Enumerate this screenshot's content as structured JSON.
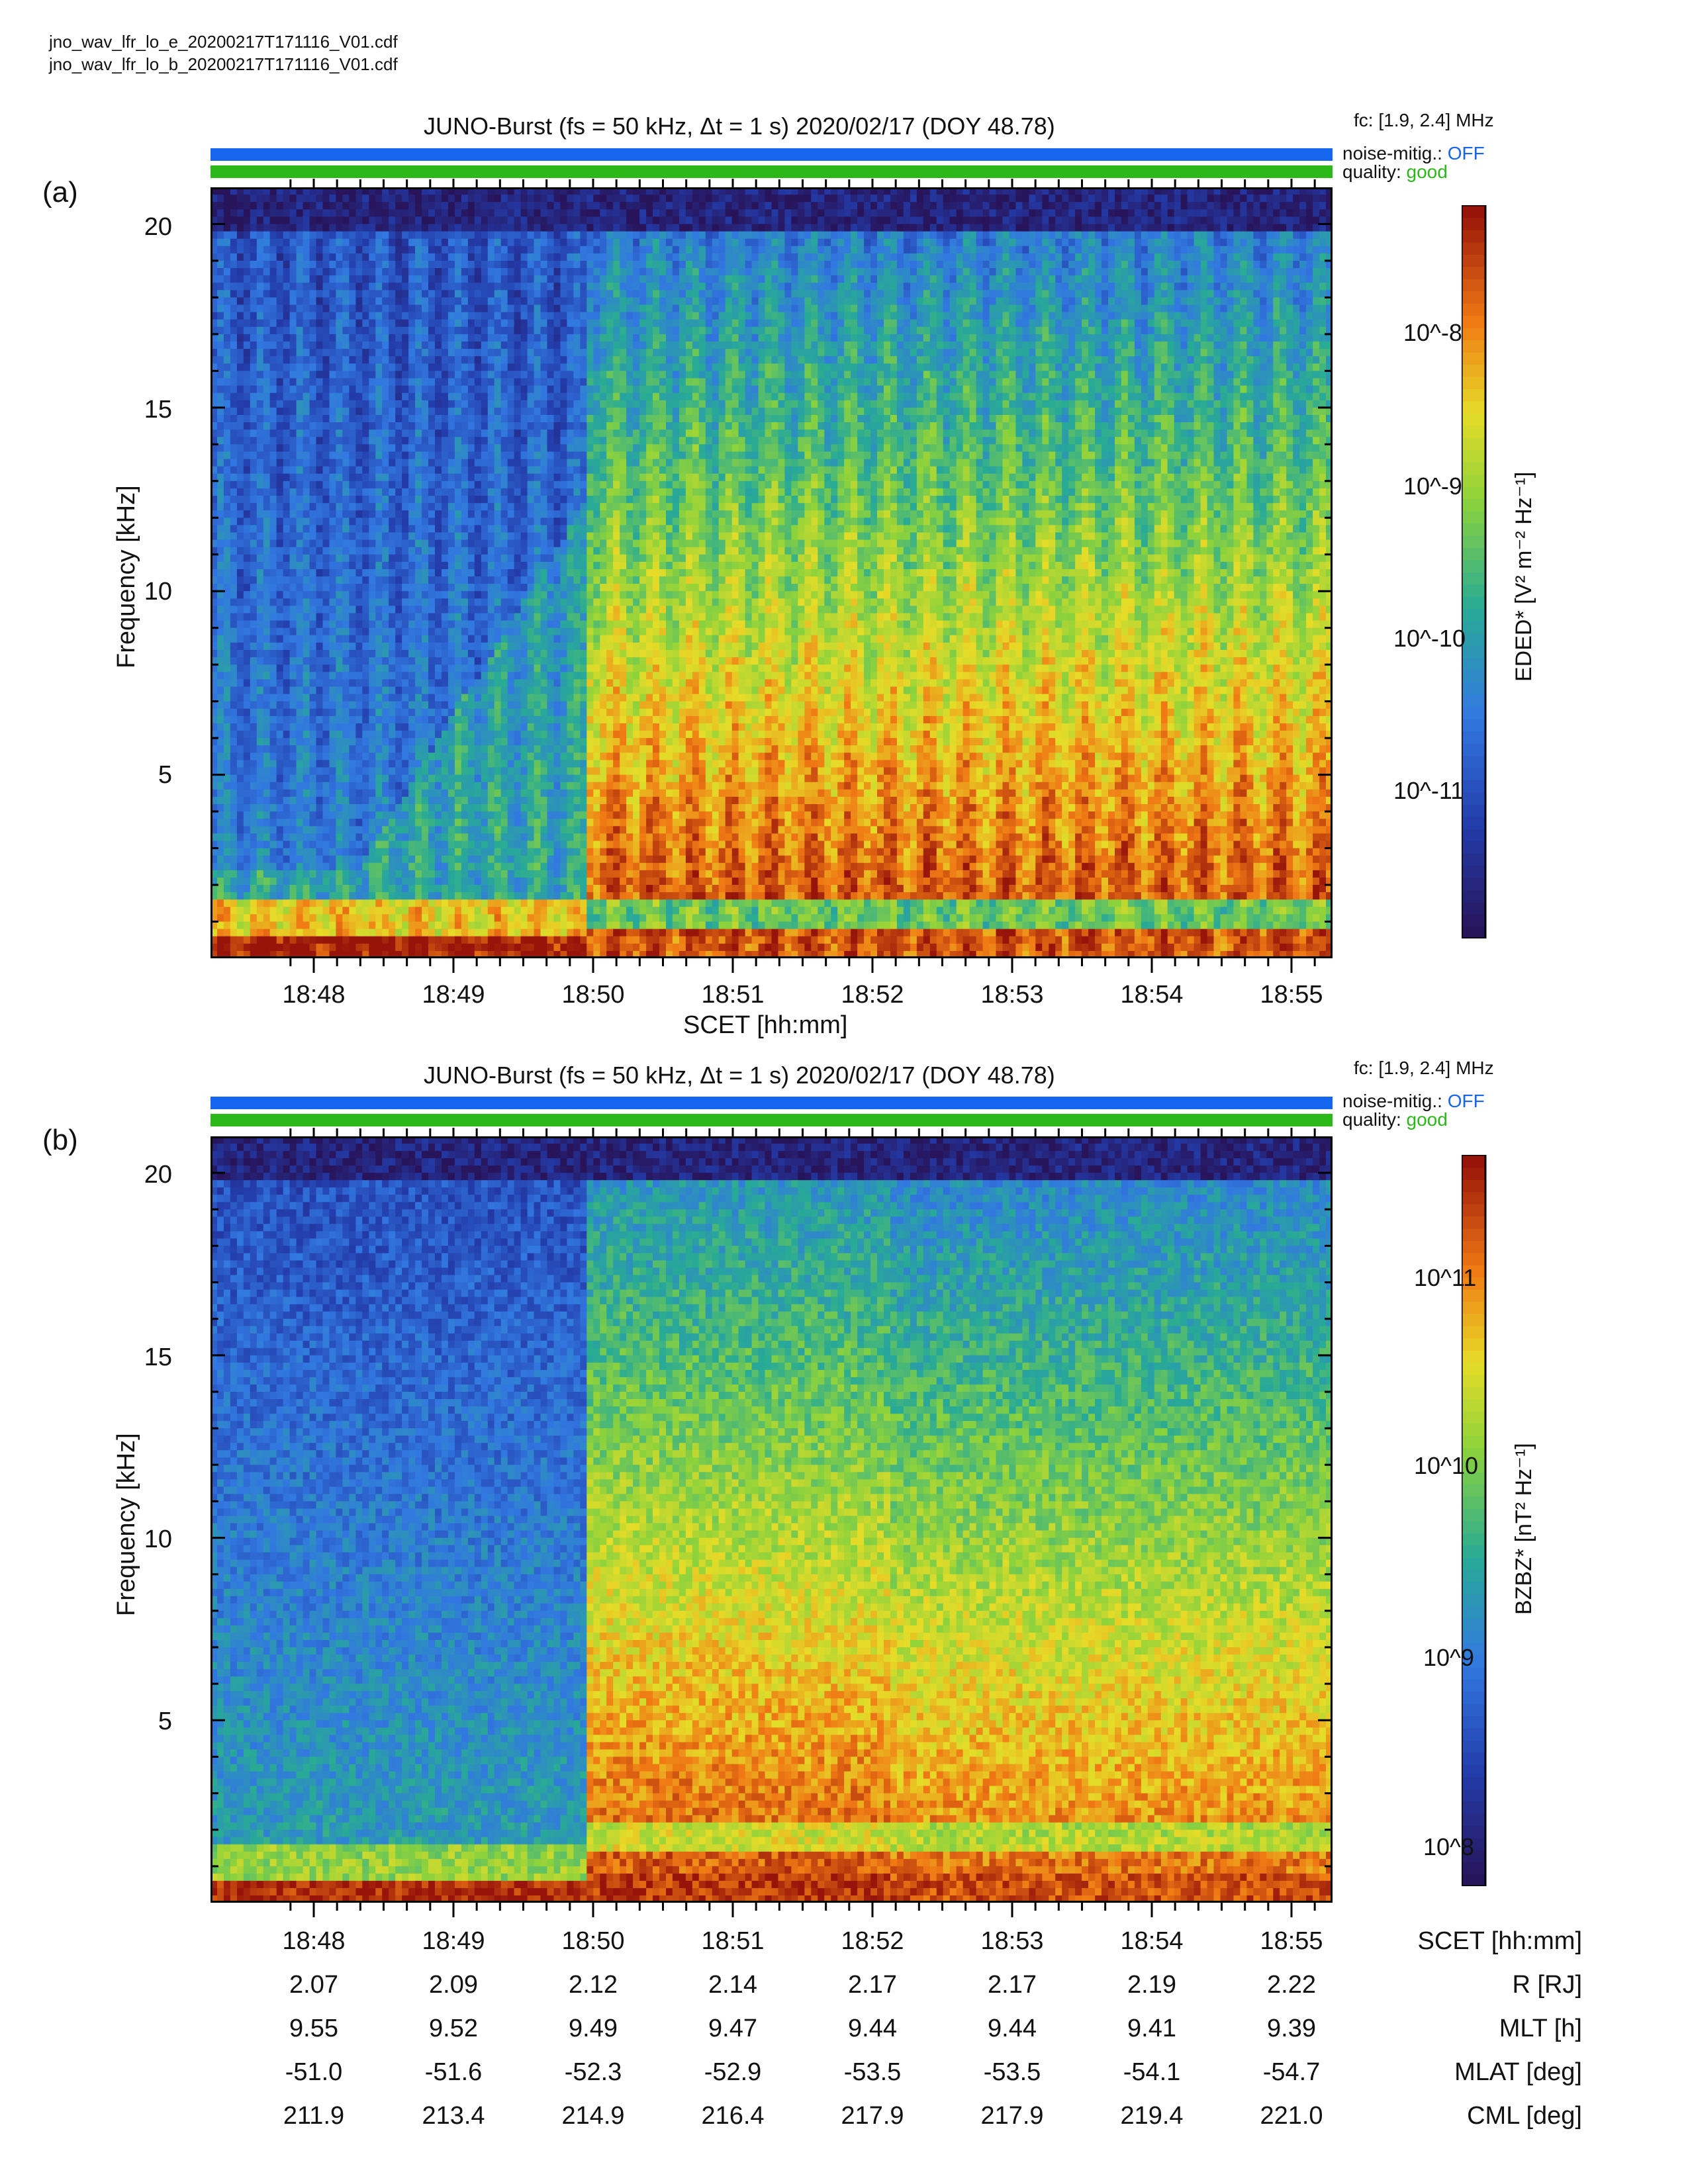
{
  "files": [
    "jno_wav_lfr_lo_e_20200217T171116_V01.cdf",
    "jno_wav_lfr_lo_b_20200217T171116_V01.cdf"
  ],
  "colors": {
    "noise_bar": "#1565ee",
    "quality_bar": "#2db81a",
    "noise_off": "#1565ee",
    "quality_good": "#2db81a"
  },
  "chart_data": [
    {
      "type": "heatmap",
      "panel_label": "(a)",
      "title": "JUNO-Burst (fs = 50 kHz, Δt = 1 s)  2020/02/17 (DOY 48.78)",
      "fc": "fc: [1.9, 2.4] MHz",
      "noise_mitig_label": "noise-mitig.:",
      "noise_mitig_value": "OFF",
      "quality_label": "quality:",
      "quality_value": "good",
      "ylabel": "Frequency [kHz]",
      "xlabel": "SCET [hh:mm]",
      "yticks": [
        "20",
        "15",
        "10",
        "5"
      ],
      "xticks": [
        "18:48",
        "18:49",
        "18:50",
        "18:51",
        "18:52",
        "18:53",
        "18:54",
        "18:55"
      ],
      "ylim": [
        0,
        21
      ],
      "colorbar_label": "EDED* [V² m⁻² Hz⁻¹]",
      "colorbar_ticks": [
        "10^-8",
        "10^-9",
        "10^-10",
        "10^-11"
      ],
      "colorbar_scale": "log"
    },
    {
      "type": "heatmap",
      "panel_label": "(b)",
      "title": "JUNO-Burst (fs = 50 kHz, Δt = 1 s)  2020/02/17 (DOY 48.78)",
      "fc": "fc: [1.9, 2.4] MHz",
      "noise_mitig_label": "noise-mitig.:",
      "noise_mitig_value": "OFF",
      "quality_label": "quality:",
      "quality_value": "good",
      "ylabel": "Frequency [kHz]",
      "yticks": [
        "20",
        "15",
        "10",
        "5"
      ],
      "xticks": [
        "18:48",
        "18:49",
        "18:50",
        "18:51",
        "18:52",
        "18:53",
        "18:54",
        "18:55"
      ],
      "ylim": [
        0,
        21
      ],
      "colorbar_label": "BZBZ* [nT² Hz⁻¹]",
      "colorbar_ticks": [
        "10^11",
        "10^10",
        "10^9",
        "10^8"
      ],
      "colorbar_scale": "log"
    }
  ],
  "ephemeris": {
    "rows": [
      {
        "label": "SCET [hh:mm]",
        "values": [
          "18:48",
          "18:49",
          "18:50",
          "18:51",
          "18:52",
          "18:53",
          "18:54",
          "18:55"
        ]
      },
      {
        "label": "R [RJ]",
        "values": [
          "2.07",
          "2.09",
          "2.12",
          "2.14",
          "2.17",
          "2.17",
          "2.19",
          "2.22"
        ]
      },
      {
        "label": "MLT [h]",
        "values": [
          "9.55",
          "9.52",
          "9.49",
          "9.47",
          "9.44",
          "9.44",
          "9.41",
          "9.39"
        ]
      },
      {
        "label": "MLAT [deg]",
        "values": [
          "-51.0",
          "-51.6",
          "-52.3",
          "-52.9",
          "-53.5",
          "-53.5",
          "-54.1",
          "-54.7"
        ]
      },
      {
        "label": "CML [deg]",
        "values": [
          "211.9",
          "213.4",
          "214.9",
          "216.4",
          "217.9",
          "217.9",
          "219.4",
          "221.0"
        ]
      }
    ]
  }
}
